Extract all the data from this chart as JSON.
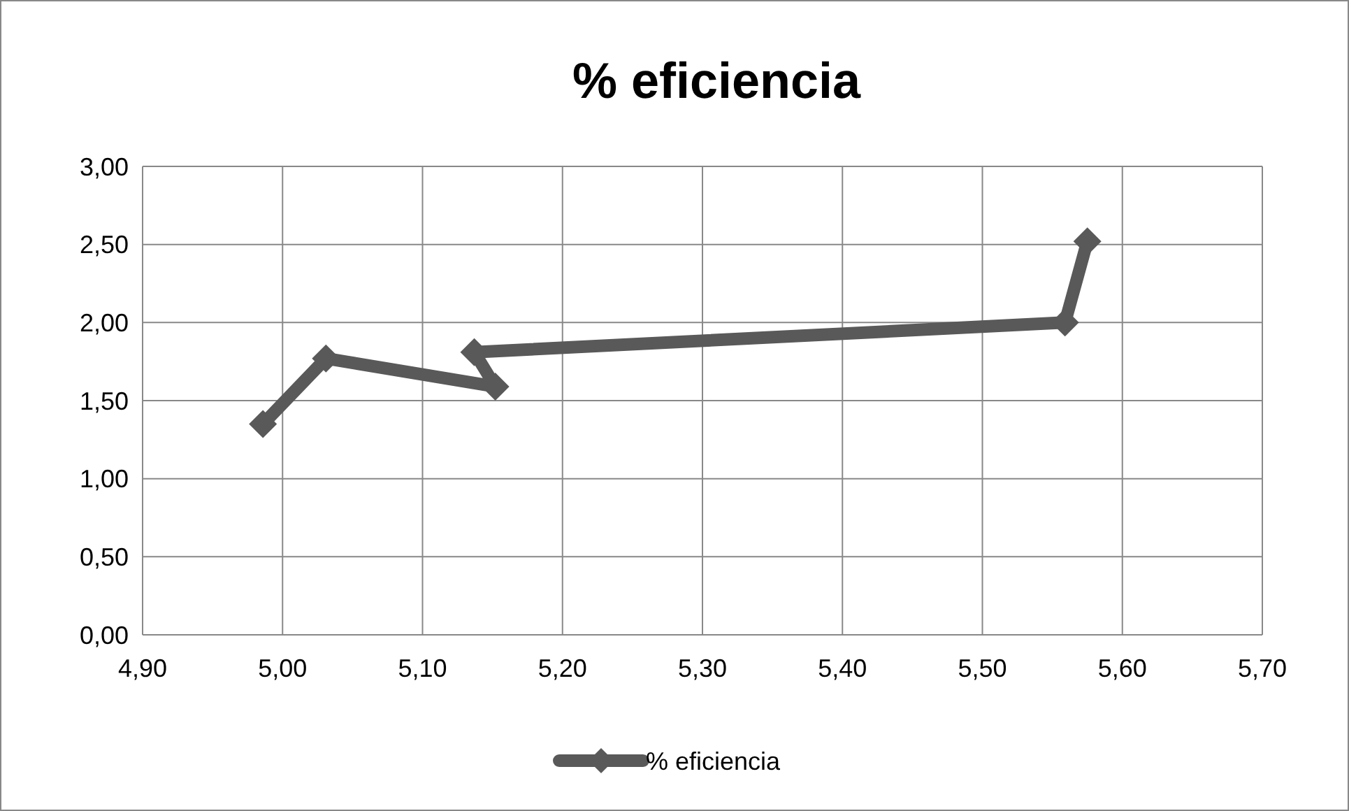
{
  "chart_data": {
    "type": "line",
    "title": "% eficiencia",
    "series": [
      {
        "name": "% eficiencia",
        "color": "#595959",
        "x": [
          4.986,
          5.031,
          5.152,
          5.137,
          5.559,
          5.575
        ],
        "values": [
          1.35,
          1.77,
          1.59,
          1.81,
          2.0,
          2.52
        ]
      }
    ],
    "xlim": [
      4.9,
      5.7
    ],
    "xticks": [
      {
        "value": 4.9,
        "label": "4,90"
      },
      {
        "value": 5.0,
        "label": "5,00"
      },
      {
        "value": 5.1,
        "label": "5,10"
      },
      {
        "value": 5.2,
        "label": "5,20"
      },
      {
        "value": 5.3,
        "label": "5,30"
      },
      {
        "value": 5.4,
        "label": "5,40"
      },
      {
        "value": 5.5,
        "label": "5,50"
      },
      {
        "value": 5.6,
        "label": "5,60"
      },
      {
        "value": 5.7,
        "label": "5,70"
      }
    ],
    "ylim": [
      0,
      3
    ],
    "yticks": [
      {
        "value": 0,
        "label": "0,00"
      },
      {
        "value": 0.5,
        "label": "0,50"
      },
      {
        "value": 1,
        "label": "1,00"
      },
      {
        "value": 1.5,
        "label": "1,50"
      },
      {
        "value": 2,
        "label": "2,00"
      },
      {
        "value": 2.5,
        "label": "2,50"
      },
      {
        "value": 3,
        "label": "3,00"
      }
    ],
    "grid": true,
    "legend": "bottom",
    "marker": "diamond",
    "line_style": "solid"
  }
}
